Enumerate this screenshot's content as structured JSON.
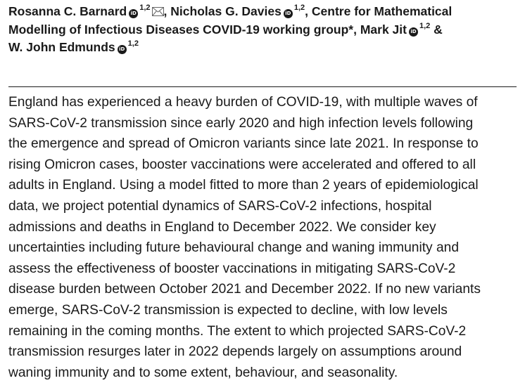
{
  "authors": {
    "a1_name": "Rosanna C. Barnard",
    "a1_aff": "1,2",
    "a2_name": "Nicholas G. Davies",
    "a2_aff": "1,2",
    "group_line1": "Centre for Mathematical",
    "group_line2": "Modelling of Infectious Diseases COVID-19 working group*",
    "a3_name": "Mark Jit",
    "a3_aff": "1,2",
    "amp": "&",
    "a4_name": "W. John Edmunds",
    "a4_aff": "1,2",
    "sep": ","
  },
  "abstract": {
    "lines": [
      "England has experienced a heavy burden of COVID-19, with multiple waves of",
      "SARS-CoV-2 transmission since early 2020 and high infection levels following",
      "the emergence and spread of Omicron variants since late 2021. In response to",
      "rising Omicron cases, booster vaccinations were accelerated and offered to all",
      "adults in England. Using a model fitted to more than 2 years of epidemiological",
      "data, we project potential dynamics of SARS-CoV-2 infections, hospital",
      "admissions and deaths in England to December 2022. We consider key",
      "uncertainties including future behavioural change and waning immunity and",
      "assess the effectiveness of booster vaccinations in mitigating SARS-CoV-2",
      "disease burden between October 2021 and December 2022. If no new variants",
      "emerge, SARS-CoV-2 transmission is expected to decline, with low levels",
      "remaining in the coming months. The extent to which projected SARS-CoV-2",
      "transmission resurges later in 2022 depends largely on assumptions around",
      "waning immunity and to some extent, behaviour, and seasonality."
    ]
  }
}
